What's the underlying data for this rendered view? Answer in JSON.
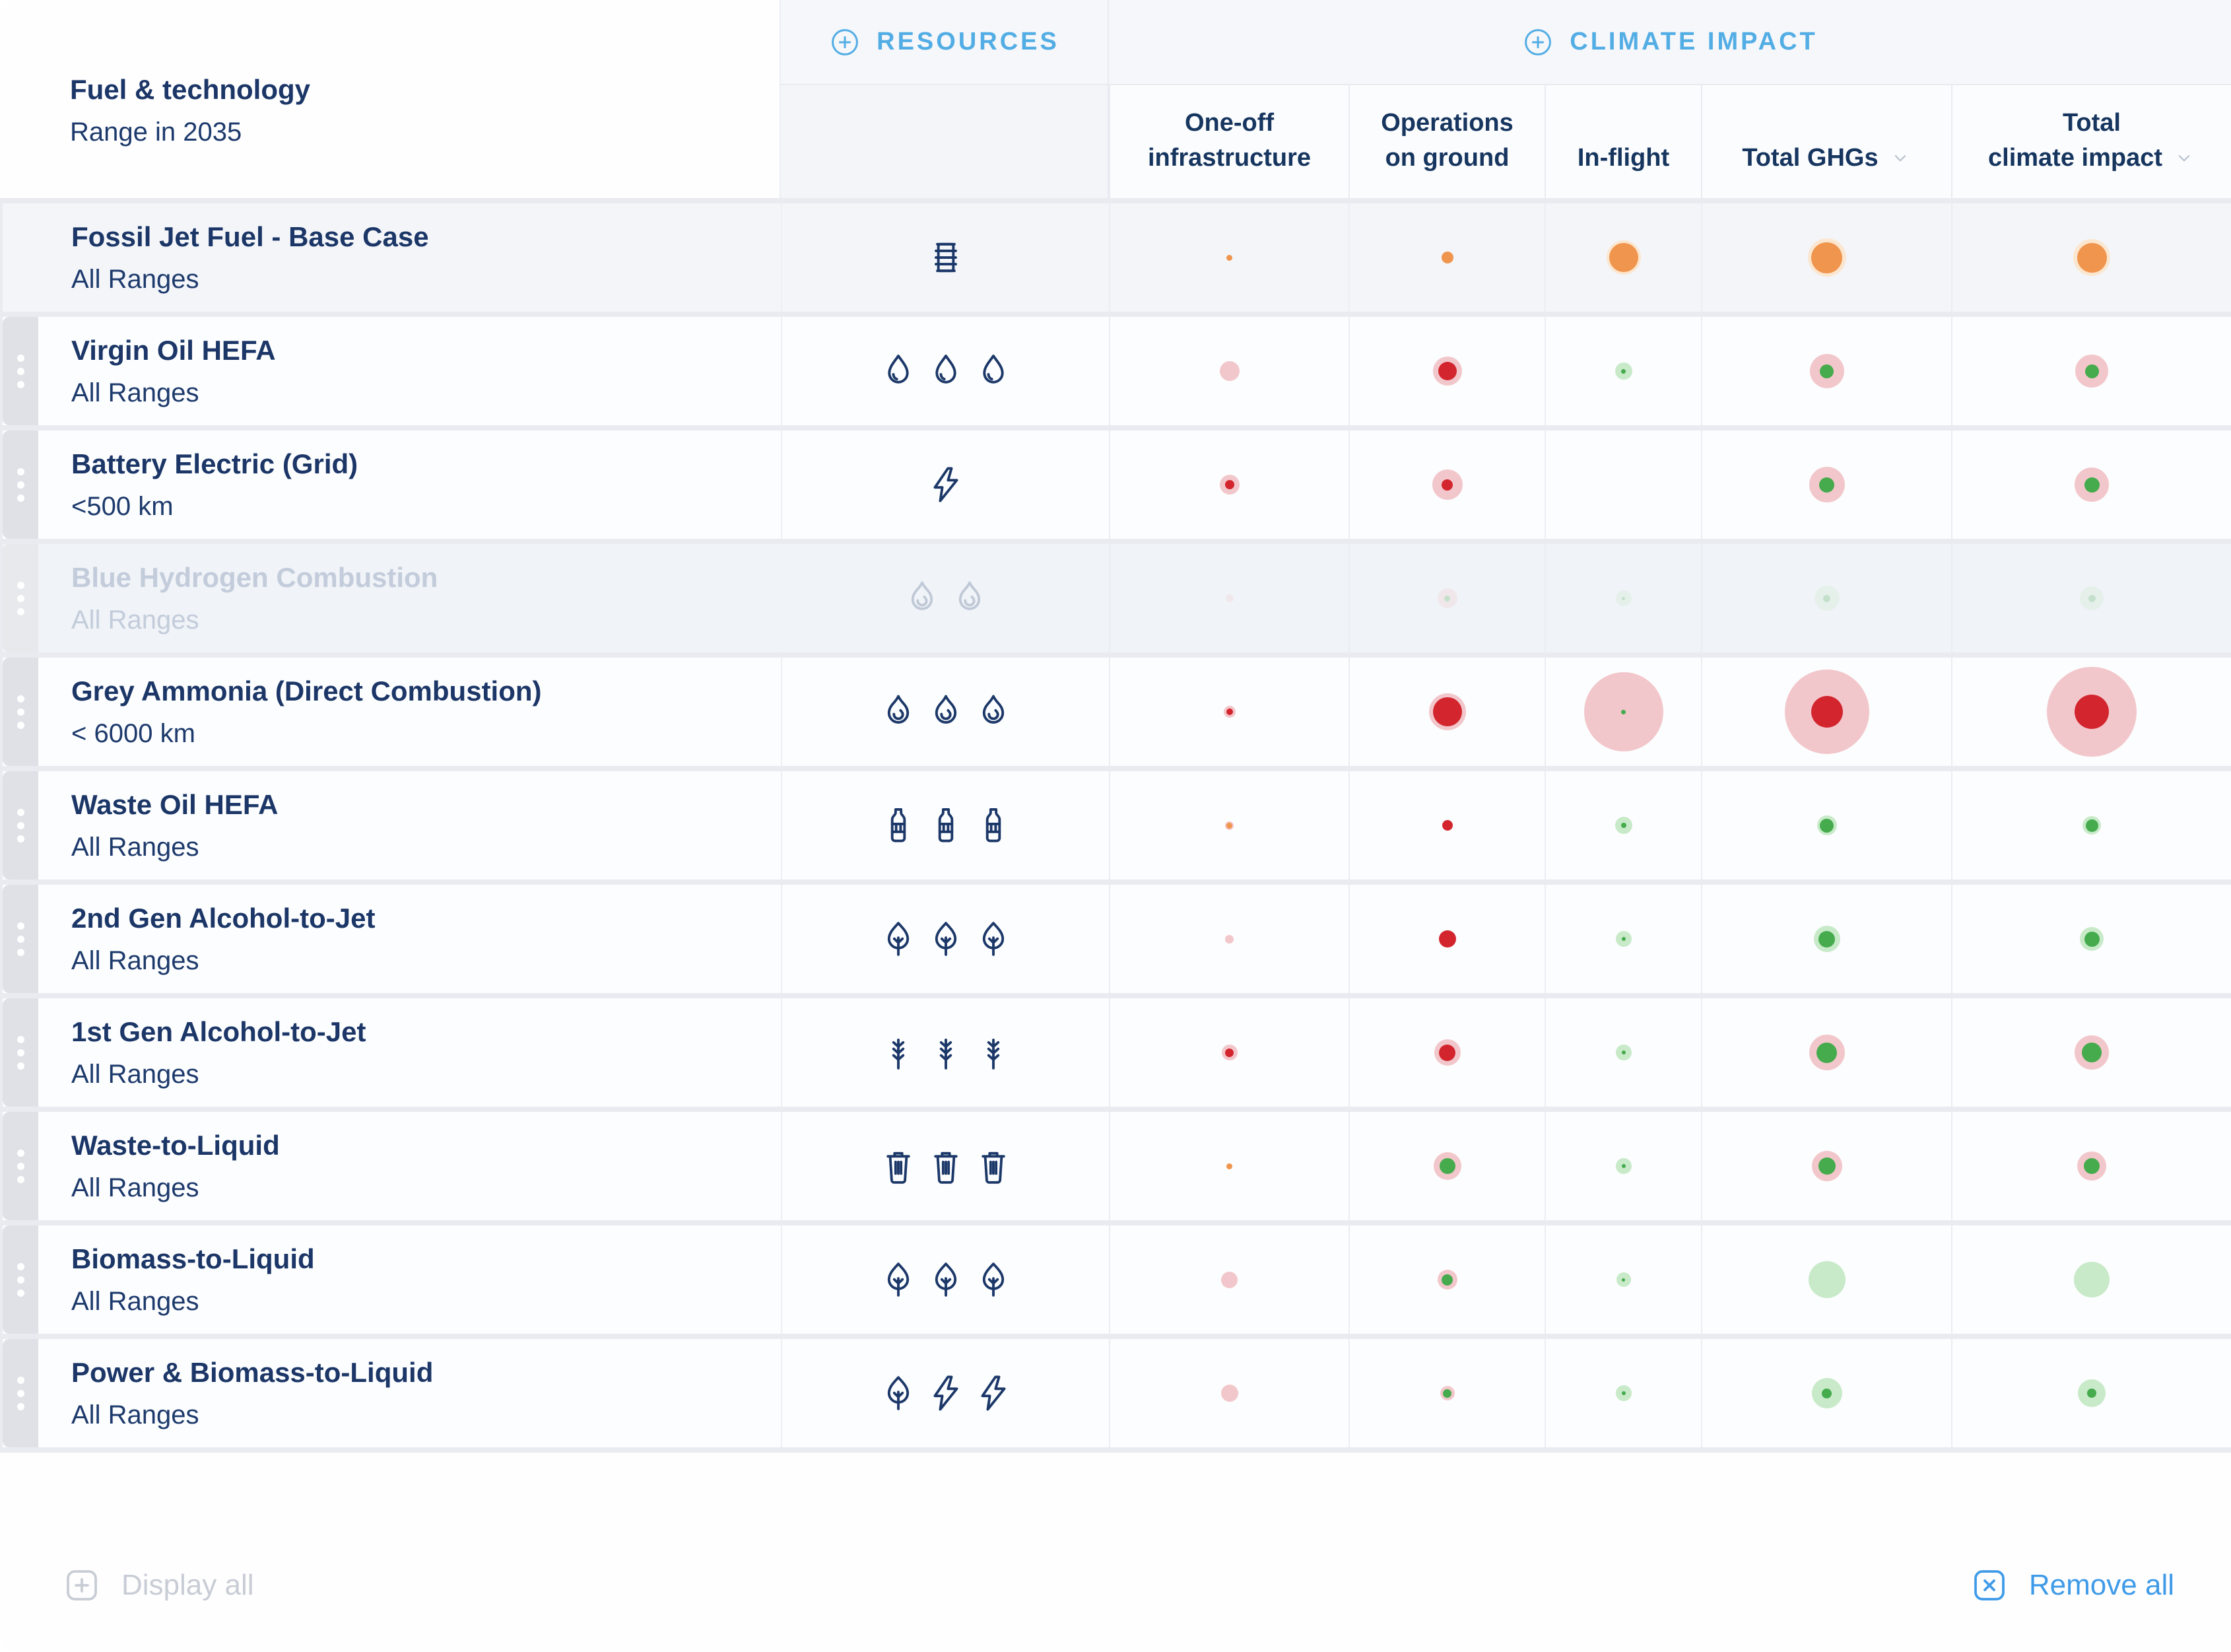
{
  "header": {
    "fuel_column": {
      "title": "Fuel & technology",
      "subtitle": "Range in 2035"
    },
    "groups": [
      {
        "id": "resources",
        "label": "RESOURCES"
      },
      {
        "id": "climate_impact",
        "label": "CLIMATE IMPACT"
      }
    ],
    "columns": [
      {
        "id": "one_off",
        "lines": [
          "One-off",
          "infrastructure"
        ],
        "sortable": false
      },
      {
        "id": "operations",
        "lines": [
          "Operations",
          "on ground"
        ],
        "sortable": false
      },
      {
        "id": "in_flight",
        "lines": [
          "In-flight"
        ],
        "sortable": false
      },
      {
        "id": "total_ghgs",
        "lines": [
          "Total GHGs"
        ],
        "sortable": true
      },
      {
        "id": "total_climate",
        "lines": [
          "Total",
          "climate impact"
        ],
        "sortable": true
      }
    ]
  },
  "palette": {
    "orange": "#F0954E",
    "orangeHalo": "#FBE6CF",
    "red": "#D3252E",
    "pink": "#F2C7CB",
    "green": "#45AB4D",
    "greenLight": "#C8EAC9",
    "accent_blue": "#53ADE5",
    "navy": "#1B3667",
    "disabled_text": "#C3CCDB"
  },
  "rows": [
    {
      "name": "Fossil Jet Fuel - Base Case",
      "range": "All Ranges",
      "resources": [
        "barrel"
      ],
      "draggable": false,
      "disabled": false,
      "bubbles": [
        {
          "halo": 0,
          "core": 9,
          "coreColor": "orange"
        },
        {
          "halo": 0,
          "core": 18,
          "coreColor": "orange"
        },
        {
          "halo": 52,
          "core": 44,
          "haloColor": "orangeHalo",
          "coreColor": "orange"
        },
        {
          "halo": 58,
          "core": 47,
          "haloColor": "orangeHalo",
          "coreColor": "orange"
        },
        {
          "halo": 56,
          "core": 45,
          "haloColor": "orangeHalo",
          "coreColor": "orange"
        }
      ]
    },
    {
      "name": "Virgin Oil HEFA",
      "range": "All Ranges",
      "resources": [
        "droplet",
        "droplet",
        "droplet"
      ],
      "draggable": true,
      "disabled": false,
      "bubbles": [
        {
          "halo": 0,
          "core": 30,
          "coreColor": "pink"
        },
        {
          "halo": 44,
          "core": 28,
          "haloColor": "pink",
          "coreColor": "red"
        },
        {
          "halo": 26,
          "core": 7,
          "haloColor": "greenLight",
          "coreColor": "green"
        },
        {
          "halo": 52,
          "core": 21,
          "haloColor": "pink",
          "coreColor": "green"
        },
        {
          "halo": 50,
          "core": 21,
          "haloColor": "pink",
          "coreColor": "green"
        }
      ]
    },
    {
      "name": "Battery Electric (Grid)",
      "range": "<500 km",
      "resources": [
        "bolt"
      ],
      "draggable": true,
      "disabled": false,
      "bubbles": [
        {
          "halo": 30,
          "core": 14,
          "haloColor": "pink",
          "coreColor": "red"
        },
        {
          "halo": 46,
          "core": 17,
          "haloColor": "pink",
          "coreColor": "red"
        },
        null,
        {
          "halo": 54,
          "core": 23,
          "haloColor": "pink",
          "coreColor": "green"
        },
        {
          "halo": 52,
          "core": 23,
          "haloColor": "pink",
          "coreColor": "green"
        }
      ]
    },
    {
      "name": "Blue Hydrogen Combustion",
      "range": "All Ranges",
      "resources": [
        "flame",
        "flame"
      ],
      "draggable": true,
      "disabled": true,
      "bubbles": [
        {
          "halo": 0,
          "core": 12,
          "coreColor": "pink"
        },
        {
          "halo": 30,
          "core": 9,
          "haloColor": "pink",
          "coreColor": "green"
        },
        {
          "halo": 24,
          "core": 5,
          "haloColor": "greenLight",
          "coreColor": "green"
        },
        {
          "halo": 38,
          "core": 11,
          "haloColor": "greenLight",
          "coreColor": "green"
        },
        {
          "halo": 36,
          "core": 11,
          "haloColor": "greenLight",
          "coreColor": "green"
        }
      ]
    },
    {
      "name": "Grey Ammonia (Direct Combustion)",
      "range": "< 6000 km",
      "resources": [
        "flame",
        "flame",
        "flame"
      ],
      "draggable": true,
      "disabled": false,
      "bubbles": [
        {
          "halo": 18,
          "core": 10,
          "haloColor": "pink",
          "coreColor": "red"
        },
        {
          "halo": 56,
          "core": 44,
          "haloColor": "pink",
          "coreColor": "red"
        },
        {
          "halo": 120,
          "core": 7,
          "haloColor": "pink",
          "coreColor": "green"
        },
        {
          "halo": 128,
          "core": 48,
          "haloColor": "pink",
          "coreColor": "red"
        },
        {
          "halo": 136,
          "core": 52,
          "haloColor": "pink",
          "coreColor": "red"
        }
      ]
    },
    {
      "name": "Waste Oil HEFA",
      "range": "All Ranges",
      "resources": [
        "bottle",
        "bottle",
        "bottle"
      ],
      "draggable": true,
      "disabled": false,
      "bubbles": [
        {
          "halo": 13,
          "core": 9,
          "haloColor": "pink",
          "coreColor": "orange"
        },
        {
          "halo": 0,
          "core": 16,
          "coreColor": "red"
        },
        {
          "halo": 26,
          "core": 8,
          "haloColor": "greenLight",
          "coreColor": "green"
        },
        {
          "halo": 30,
          "core": 21,
          "haloColor": "greenLight",
          "coreColor": "green"
        },
        {
          "halo": 28,
          "core": 19,
          "haloColor": "greenLight",
          "coreColor": "green"
        }
      ]
    },
    {
      "name": "2nd Gen Alcohol-to-Jet",
      "range": "All Ranges",
      "resources": [
        "tree",
        "tree",
        "tree"
      ],
      "draggable": true,
      "disabled": false,
      "bubbles": [
        {
          "halo": 0,
          "core": 13,
          "coreColor": "pink"
        },
        {
          "halo": 0,
          "core": 26,
          "coreColor": "red"
        },
        {
          "halo": 24,
          "core": 6,
          "haloColor": "greenLight",
          "coreColor": "green"
        },
        {
          "halo": 40,
          "core": 25,
          "haloColor": "greenLight",
          "coreColor": "green"
        },
        {
          "halo": 36,
          "core": 23,
          "haloColor": "greenLight",
          "coreColor": "green"
        }
      ]
    },
    {
      "name": "1st Gen Alcohol-to-Jet",
      "range": "All Ranges",
      "resources": [
        "wheat",
        "wheat",
        "wheat"
      ],
      "draggable": true,
      "disabled": false,
      "bubbles": [
        {
          "halo": 24,
          "core": 13,
          "haloColor": "pink",
          "coreColor": "red"
        },
        {
          "halo": 40,
          "core": 25,
          "haloColor": "pink",
          "coreColor": "red"
        },
        {
          "halo": 24,
          "core": 6,
          "haloColor": "greenLight",
          "coreColor": "green"
        },
        {
          "halo": 54,
          "core": 31,
          "haloColor": "pink",
          "coreColor": "green"
        },
        {
          "halo": 52,
          "core": 30,
          "haloColor": "pink",
          "coreColor": "green"
        }
      ]
    },
    {
      "name": "Waste-to-Liquid",
      "range": "All Ranges",
      "resources": [
        "trash",
        "trash",
        "trash"
      ],
      "draggable": true,
      "disabled": false,
      "bubbles": [
        {
          "halo": 0,
          "core": 9,
          "coreColor": "orange"
        },
        {
          "halo": 42,
          "core": 24,
          "haloColor": "pink",
          "coreColor": "green"
        },
        {
          "halo": 24,
          "core": 6,
          "haloColor": "greenLight",
          "coreColor": "green"
        },
        {
          "halo": 46,
          "core": 26,
          "haloColor": "pink",
          "coreColor": "green"
        },
        {
          "halo": 44,
          "core": 24,
          "haloColor": "pink",
          "coreColor": "green"
        }
      ]
    },
    {
      "name": "Biomass-to-Liquid",
      "range": "All Ranges",
      "resources": [
        "tree",
        "tree",
        "tree"
      ],
      "draggable": true,
      "disabled": false,
      "bubbles": [
        {
          "halo": 0,
          "core": 25,
          "coreColor": "pink"
        },
        {
          "halo": 30,
          "core": 17,
          "haloColor": "pink",
          "coreColor": "green"
        },
        {
          "halo": 22,
          "core": 5,
          "haloColor": "greenLight",
          "coreColor": "green"
        },
        {
          "halo": 56,
          "core": 0,
          "haloColor": "greenLight"
        },
        {
          "halo": 54,
          "core": 0,
          "haloColor": "greenLight"
        }
      ]
    },
    {
      "name": "Power & Biomass-to-Liquid",
      "range": "All Ranges",
      "resources": [
        "tree",
        "bolt",
        "bolt"
      ],
      "draggable": true,
      "disabled": false,
      "bubbles": [
        {
          "halo": 0,
          "core": 26,
          "coreColor": "pink"
        },
        {
          "halo": 22,
          "core": 13,
          "haloColor": "pink",
          "coreColor": "green"
        },
        {
          "halo": 24,
          "core": 6,
          "haloColor": "greenLight",
          "coreColor": "green"
        },
        {
          "halo": 46,
          "core": 15,
          "haloColor": "greenLight",
          "coreColor": "green"
        },
        {
          "halo": 42,
          "core": 14,
          "haloColor": "greenLight",
          "coreColor": "green"
        }
      ]
    }
  ],
  "footer": {
    "display_all": {
      "label": "Display all",
      "enabled": false
    },
    "remove_all": {
      "label": "Remove all",
      "enabled": true
    }
  }
}
